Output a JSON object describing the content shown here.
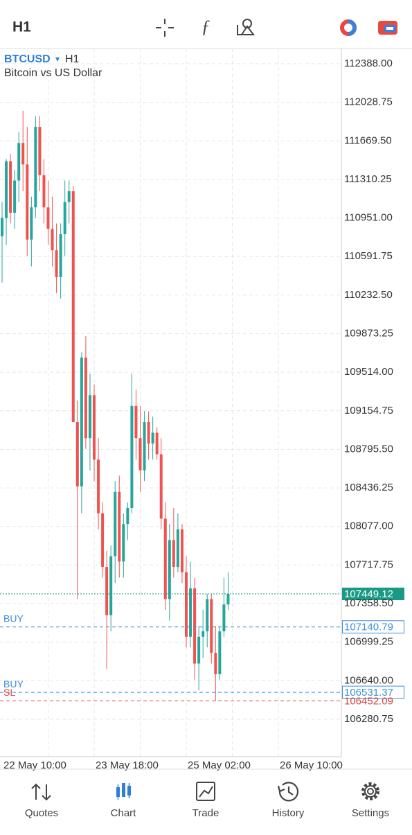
{
  "top_bar": {
    "timeframe": "H1"
  },
  "chart_data": {
    "type": "candlestick",
    "symbol": "BTCUSD",
    "dropdown": "▾",
    "timeframe": "H1",
    "subtitle": "Bitcoin vs US Dollar",
    "categories": [
      "22 May 10:00",
      null,
      null,
      null,
      null,
      null,
      null,
      null,
      null,
      null,
      null,
      null,
      null,
      null,
      null,
      null,
      null,
      null,
      null,
      null,
      null,
      null,
      "23 May 18:00",
      null,
      null,
      null,
      null,
      null,
      null,
      null,
      null,
      null,
      null,
      null,
      null,
      null,
      null,
      null,
      null,
      null,
      null,
      null,
      null,
      null,
      "25 May 02:00",
      null,
      null,
      null,
      null,
      null,
      null,
      null,
      null,
      null,
      null,
      null,
      null,
      null,
      null,
      null,
      null,
      null,
      null,
      null,
      null,
      null,
      "26 May 10:00"
    ],
    "open": [
      110780,
      110950,
      111480,
      111000,
      111300,
      111650,
      111450,
      110750,
      111050,
      111800,
      111350,
      111050,
      110850,
      110650,
      110400,
      110800,
      111100,
      111200,
      109050,
      108450,
      109650,
      108900,
      109300,
      108700,
      108200,
      107700,
      107250,
      107800,
      108400,
      107750,
      108100,
      108250,
      109200,
      108900,
      108600,
      109050,
      108850,
      108950,
      108750,
      108150,
      107400,
      107950,
      107700,
      108050,
      107650,
      107050,
      107500,
      106800,
      107050,
      107100,
      107400,
      106900,
      106700,
      107100,
      107350,
      null,
      null,
      null,
      null,
      null,
      null,
      null,
      null,
      null,
      null,
      null,
      null
    ],
    "high": [
      111100,
      111500,
      111550,
      111400,
      111750,
      111950,
      111800,
      111150,
      111900,
      111900,
      111500,
      111300,
      111150,
      110900,
      110900,
      111300,
      111300,
      111250,
      109250,
      109700,
      109850,
      109500,
      109400,
      108900,
      108300,
      107850,
      107900,
      108500,
      108550,
      108200,
      108300,
      109500,
      109350,
      109200,
      109150,
      109150,
      109100,
      109000,
      108900,
      108300,
      108100,
      108250,
      108200,
      108100,
      107800,
      107750,
      107600,
      107150,
      107300,
      107450,
      107450,
      107150,
      107150,
      107600,
      107650,
      null,
      null,
      null,
      null,
      null,
      null,
      null,
      null,
      null,
      null,
      null,
      null
    ],
    "low": [
      110350,
      110700,
      110900,
      110850,
      111100,
      111200,
      110600,
      110500,
      110950,
      111200,
      110900,
      110700,
      110500,
      110250,
      110200,
      110600,
      110900,
      109050,
      107400,
      108200,
      108800,
      108600,
      108500,
      108050,
      107600,
      106750,
      107100,
      107550,
      107600,
      107600,
      107950,
      108200,
      108700,
      108400,
      108500,
      108700,
      108700,
      108700,
      108050,
      107300,
      107200,
      107600,
      107650,
      107550,
      106950,
      106950,
      106650,
      106550,
      106850,
      106950,
      106800,
      106450,
      106650,
      107050,
      107300,
      null,
      null,
      null,
      null,
      null,
      null,
      null,
      null,
      null,
      null,
      null,
      null
    ],
    "close": [
      110950,
      111480,
      111000,
      111300,
      111650,
      111450,
      110750,
      111050,
      111800,
      111350,
      111050,
      110850,
      110650,
      110400,
      110800,
      111100,
      111200,
      109050,
      108450,
      109650,
      108900,
      109300,
      108700,
      108200,
      107700,
      107250,
      107800,
      108400,
      107750,
      108100,
      108250,
      109200,
      108900,
      108600,
      109050,
      108850,
      108950,
      108750,
      108150,
      107400,
      107950,
      107700,
      108050,
      107650,
      107050,
      107500,
      106800,
      107050,
      107100,
      107400,
      106900,
      106700,
      107100,
      107350,
      107449.12,
      null,
      null,
      null,
      null,
      null,
      null,
      null,
      null,
      null,
      null,
      null,
      null
    ],
    "up_color": "#26a69a",
    "down_color": "#ef5350",
    "ylim": [
      105932,
      112530
    ],
    "yticks": [
      {
        "value": 112388,
        "label": "112388.00"
      },
      112028.75,
      {
        "value": 111669.5,
        "label": "111669.50"
      },
      111310.25,
      {
        "value": 110951,
        "label": "110951.00"
      },
      110591.75,
      {
        "value": 110232.5,
        "label": "110232.50"
      },
      109873.25,
      {
        "value": 109514,
        "label": "109514.00"
      },
      109154.75,
      {
        "value": 108795.5,
        "label": "108795.50"
      },
      108436.25,
      {
        "value": 108077,
        "label": "108077.00"
      },
      107717.75,
      {
        "value": 107358.5,
        "label": "107358.50"
      },
      106999.25,
      {
        "value": 106640,
        "label": "106640.00"
      },
      106280.75
    ],
    "grid": true,
    "levels": [
      {
        "value": 107449.12,
        "color": "#1a9a85",
        "style": "dotted",
        "tag": "filled"
      },
      {
        "label": "BUY",
        "value": 107140.79,
        "color": "#3d8fd6",
        "style": "dashed",
        "tag": "outlined"
      },
      {
        "label": "BUY",
        "value": 106531.37,
        "color": "#3d8fd6",
        "style": "dashed",
        "tag": "outlined"
      },
      {
        "label": "SL",
        "value": 106452.09,
        "color": "#d9443c",
        "style": "dashed",
        "tag": "plain"
      }
    ]
  },
  "nav": {
    "items": [
      {
        "label": "Quotes"
      },
      {
        "label": "Chart"
      },
      {
        "label": "Trade"
      },
      {
        "label": "History"
      },
      {
        "label": "Settings"
      }
    ],
    "active": 1
  }
}
